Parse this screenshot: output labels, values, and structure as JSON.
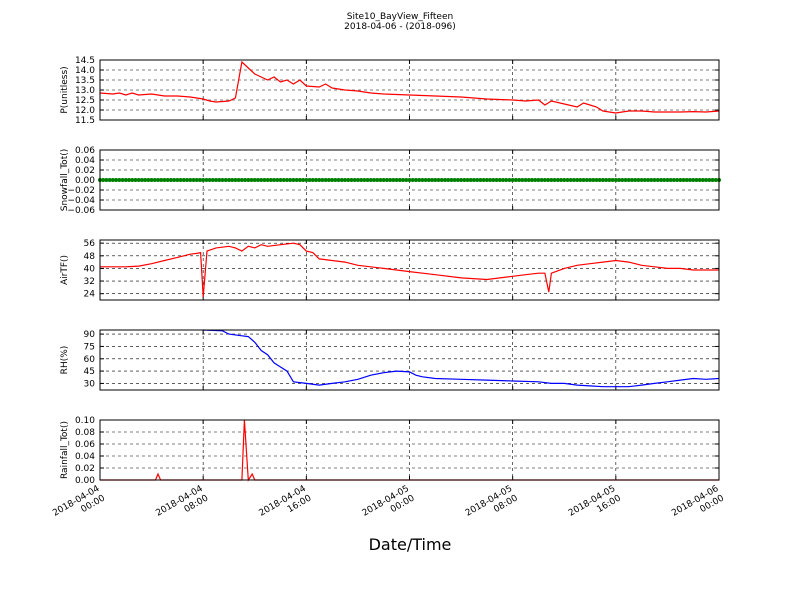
{
  "chart_data": {
    "title": "Site10_BayView_Fifteen",
    "subtitle": "2018-04-06 - (2018-096)",
    "xlabel": "Date/Time",
    "x_ticks": [
      {
        "line1": "2018-04-04",
        "line2": "00:00"
      },
      {
        "line1": "2018-04-04",
        "line2": "08:00"
      },
      {
        "line1": "2018-04-04",
        "line2": "16:00"
      },
      {
        "line1": "2018-04-05",
        "line2": "00:00"
      },
      {
        "line1": "2018-04-05",
        "line2": "08:00"
      },
      {
        "line1": "2018-04-05",
        "line2": "16:00"
      },
      {
        "line1": "2018-04-06",
        "line2": "00:00"
      }
    ],
    "grid": true,
    "panels": [
      {
        "type": "line",
        "ylabel": "P(unitless)",
        "color": "#ff0000",
        "ylim": [
          11.5,
          14.5
        ],
        "yticks": [
          "14.5",
          "14.0",
          "13.5",
          "13.0",
          "12.5",
          "12.0",
          "11.5"
        ],
        "points": [
          [
            0,
            12.85
          ],
          [
            1,
            12.8
          ],
          [
            1.5,
            12.85
          ],
          [
            2,
            12.75
          ],
          [
            2.5,
            12.85
          ],
          [
            3,
            12.75
          ],
          [
            4,
            12.8
          ],
          [
            5,
            12.7
          ],
          [
            6,
            12.7
          ],
          [
            7,
            12.65
          ],
          [
            8,
            12.55
          ],
          [
            8.5,
            12.45
          ],
          [
            9,
            12.4
          ],
          [
            10,
            12.45
          ],
          [
            10.5,
            12.6
          ],
          [
            11,
            14.4
          ],
          [
            11.5,
            14.1
          ],
          [
            12,
            13.8
          ],
          [
            12.5,
            13.65
          ],
          [
            13,
            13.5
          ],
          [
            13.5,
            13.65
          ],
          [
            14,
            13.4
          ],
          [
            14.5,
            13.5
          ],
          [
            15,
            13.3
          ],
          [
            15.5,
            13.5
          ],
          [
            16,
            13.2
          ],
          [
            17,
            13.15
          ],
          [
            17.5,
            13.3
          ],
          [
            18,
            13.1
          ],
          [
            19,
            13.0
          ],
          [
            20,
            12.95
          ],
          [
            21,
            12.85
          ],
          [
            22,
            12.8
          ],
          [
            24,
            12.75
          ],
          [
            26,
            12.7
          ],
          [
            28,
            12.65
          ],
          [
            30,
            12.55
          ],
          [
            32,
            12.5
          ],
          [
            33,
            12.45
          ],
          [
            34,
            12.5
          ],
          [
            34.5,
            12.25
          ],
          [
            35,
            12.45
          ],
          [
            36,
            12.3
          ],
          [
            37,
            12.15
          ],
          [
            37.5,
            12.35
          ],
          [
            38,
            12.25
          ],
          [
            38.5,
            12.15
          ],
          [
            39,
            11.95
          ],
          [
            40,
            11.85
          ],
          [
            41,
            11.95
          ],
          [
            42,
            11.95
          ],
          [
            43,
            11.9
          ],
          [
            44,
            11.9
          ],
          [
            45,
            11.9
          ],
          [
            46,
            11.92
          ],
          [
            47,
            11.9
          ],
          [
            48,
            11.95
          ]
        ]
      },
      {
        "type": "scatter",
        "ylabel": "Snowfall_Tot()",
        "color": "#008000",
        "ylim": [
          -0.06,
          0.06
        ],
        "yticks": [
          "0.06",
          "0.04",
          "0.02",
          "0.00",
          "−0.02",
          "−0.04",
          "−0.06"
        ],
        "points": [
          [
            0,
            0
          ],
          [
            48,
            0
          ]
        ]
      },
      {
        "type": "line",
        "ylabel": "AirTF()",
        "color": "#ff0000",
        "ylim": [
          20,
          58
        ],
        "yticks": [
          "56",
          "48",
          "40",
          "32",
          "24"
        ],
        "points": [
          [
            0,
            41
          ],
          [
            1,
            41
          ],
          [
            2,
            41
          ],
          [
            3,
            41.5
          ],
          [
            4,
            43
          ],
          [
            5,
            45
          ],
          [
            6,
            47
          ],
          [
            7,
            49
          ],
          [
            7.5,
            49.5
          ],
          [
            7.8,
            50
          ],
          [
            8,
            22
          ],
          [
            8.3,
            51
          ],
          [
            9,
            53
          ],
          [
            10,
            54
          ],
          [
            10.5,
            53
          ],
          [
            11,
            51
          ],
          [
            11.5,
            54
          ],
          [
            12,
            53
          ],
          [
            12.5,
            55
          ],
          [
            13,
            54
          ],
          [
            14,
            55
          ],
          [
            15,
            56
          ],
          [
            15.5,
            55
          ],
          [
            16,
            51
          ],
          [
            16.5,
            50
          ],
          [
            17,
            46
          ],
          [
            18,
            45
          ],
          [
            19,
            44
          ],
          [
            20,
            42
          ],
          [
            22,
            40
          ],
          [
            24,
            38
          ],
          [
            26,
            36
          ],
          [
            28,
            34
          ],
          [
            30,
            33
          ],
          [
            32,
            35
          ],
          [
            33,
            36
          ],
          [
            34,
            37
          ],
          [
            34.5,
            37
          ],
          [
            34.8,
            25
          ],
          [
            35,
            37
          ],
          [
            36,
            40
          ],
          [
            37,
            42
          ],
          [
            38,
            43
          ],
          [
            39,
            44
          ],
          [
            40,
            45
          ],
          [
            41,
            44
          ],
          [
            42,
            42
          ],
          [
            43,
            41
          ],
          [
            44,
            40
          ],
          [
            45,
            40
          ],
          [
            46,
            39
          ],
          [
            47,
            39
          ],
          [
            48,
            39
          ]
        ]
      },
      {
        "type": "line",
        "ylabel": "RH(%)",
        "color": "#0000ff",
        "ylim": [
          22,
          95
        ],
        "yticks": [
          "90",
          "75",
          "60",
          "45",
          "30"
        ],
        "points": [
          [
            8,
            95
          ],
          [
            9.5,
            94
          ],
          [
            10,
            90
          ],
          [
            11,
            88
          ],
          [
            11.5,
            87
          ],
          [
            12,
            80
          ],
          [
            12.5,
            70
          ],
          [
            13,
            65
          ],
          [
            13.5,
            55
          ],
          [
            14,
            50
          ],
          [
            14.5,
            45
          ],
          [
            15,
            32
          ],
          [
            16,
            30
          ],
          [
            17,
            28
          ],
          [
            18,
            30
          ],
          [
            19,
            32
          ],
          [
            20,
            35
          ],
          [
            21,
            40
          ],
          [
            22,
            43
          ],
          [
            23,
            45
          ],
          [
            24,
            44
          ],
          [
            24.5,
            40
          ],
          [
            25,
            38
          ],
          [
            26,
            36
          ],
          [
            28,
            35
          ],
          [
            30,
            34
          ],
          [
            32,
            33
          ],
          [
            34,
            32
          ],
          [
            35,
            30
          ],
          [
            36,
            30
          ],
          [
            37,
            28
          ],
          [
            38,
            27
          ],
          [
            39,
            26
          ],
          [
            40,
            26
          ],
          [
            41,
            26
          ],
          [
            42,
            28
          ],
          [
            43,
            30
          ],
          [
            44,
            32
          ],
          [
            45,
            34
          ],
          [
            46,
            36
          ],
          [
            47,
            35
          ],
          [
            48,
            36
          ]
        ]
      },
      {
        "type": "line",
        "ylabel": "Rainfall_Tot()",
        "color": "#ff0000",
        "ylim": [
          0,
          0.1
        ],
        "yticks": [
          "0.10",
          "0.08",
          "0.06",
          "0.04",
          "0.02",
          "0.00"
        ],
        "points": [
          [
            0,
            0
          ],
          [
            4.3,
            0
          ],
          [
            4.5,
            0.01
          ],
          [
            4.7,
            0
          ],
          [
            11,
            0
          ],
          [
            11.2,
            0.1
          ],
          [
            11.5,
            0
          ],
          [
            11.8,
            0.01
          ],
          [
            12,
            0
          ],
          [
            48,
            0
          ]
        ]
      }
    ]
  }
}
